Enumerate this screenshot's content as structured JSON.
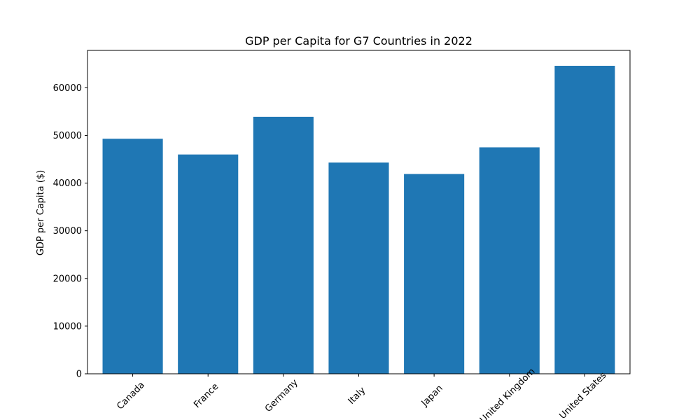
{
  "chart_data": {
    "type": "bar",
    "title": "GDP per Capita for G7 Countries in 2022",
    "xlabel": "",
    "ylabel": "GDP per Capita ($)",
    "categories": [
      "Canada",
      "France",
      "Germany",
      "Italy",
      "Japan",
      "United Kingdom",
      "United States"
    ],
    "values": [
      49300,
      46000,
      53900,
      44300,
      41900,
      47500,
      64600
    ],
    "ylim": [
      0,
      67830
    ],
    "yticks": [
      0,
      10000,
      20000,
      30000,
      40000,
      50000,
      60000
    ],
    "bar_color": "#1f77b4",
    "grid": false,
    "legend": "none"
  }
}
